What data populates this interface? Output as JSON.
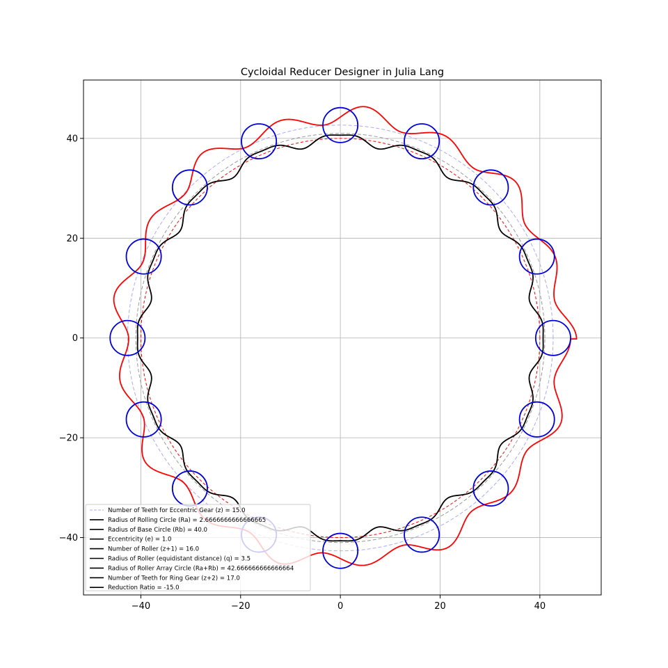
{
  "chart_data": {
    "type": "line",
    "title": "Cycloidal Reducer Designer in Julia Lang",
    "xlabel": "",
    "ylabel": "",
    "xlim": [
      -51.5,
      52.3
    ],
    "ylim": [
      -51.5,
      51.7
    ],
    "x_ticks": [
      -40,
      -20,
      0,
      20,
      40
    ],
    "y_ticks": [
      -40,
      -20,
      0,
      20,
      40
    ],
    "x_tick_labels": [
      "−40",
      "−20",
      "0",
      "20",
      "40"
    ],
    "y_tick_labels": [
      "−40",
      "−20",
      "0",
      "20",
      "40"
    ],
    "grid": true,
    "legend_position": "lower-left",
    "legend": [
      "Number of Teeth for Eccentric Gear (z) = 15.0",
      "Radius of Rolling Circle (Ra) = 2.6666666666666665",
      "Radius of Base Circle (Rb) = 40.0",
      "Eccentricity (e) = 1.0",
      "Number of Roller (z+1) = 16.0",
      "Radius of Roller (equidistant distance) (q) = 3.5",
      "Radius of Roller Array Circle (Ra+Rb) = 42.666666666666664",
      "Number of Teeth for Ring Gear (z+2) = 17.0",
      "Reduction Ratio = -15.0"
    ],
    "parameters": {
      "z": 15,
      "Ra": 2.6666666666666665,
      "Rb": 40.0,
      "e": 1.0,
      "rollers": 16,
      "q": 3.5,
      "roller_array_radius": 42.666666666666664,
      "ring_teeth": 17,
      "reduction_ratio": -15.0
    },
    "colors": {
      "base_circle": "#ff0000",
      "roller_array_circle": "#aaaaff",
      "pitch_circle": "#999999",
      "eccentric_gear": "#000000",
      "ring_gear": "#ff0000",
      "rollers": "#0000dd",
      "legend_dashed": "#aaaaff",
      "legend_solid": "#000000"
    }
  }
}
